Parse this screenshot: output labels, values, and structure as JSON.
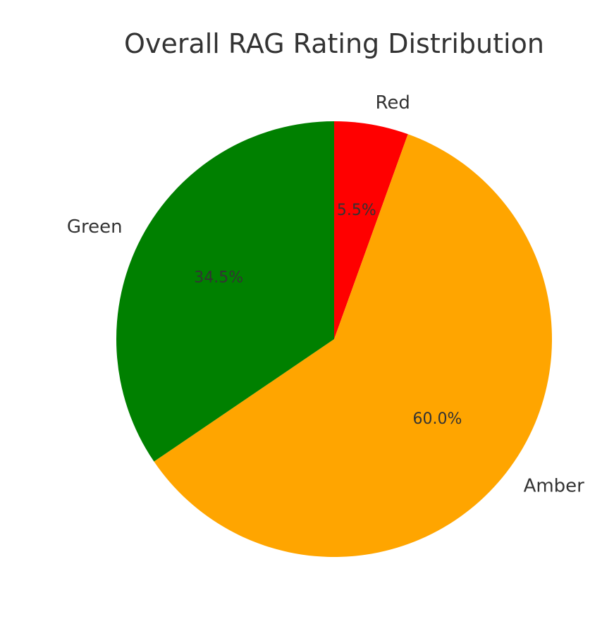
{
  "chart_data": {
    "type": "pie",
    "title": "Overall RAG Rating Distribution",
    "categories": [
      "Red",
      "Amber",
      "Green"
    ],
    "values": [
      5.5,
      60.0,
      34.5
    ],
    "value_labels": [
      "5.5%",
      "60.0%",
      "34.5%"
    ],
    "colors": [
      "#ff0000",
      "#ffa500",
      "#008000"
    ],
    "start_angle": "top",
    "direction": "clockwise"
  }
}
